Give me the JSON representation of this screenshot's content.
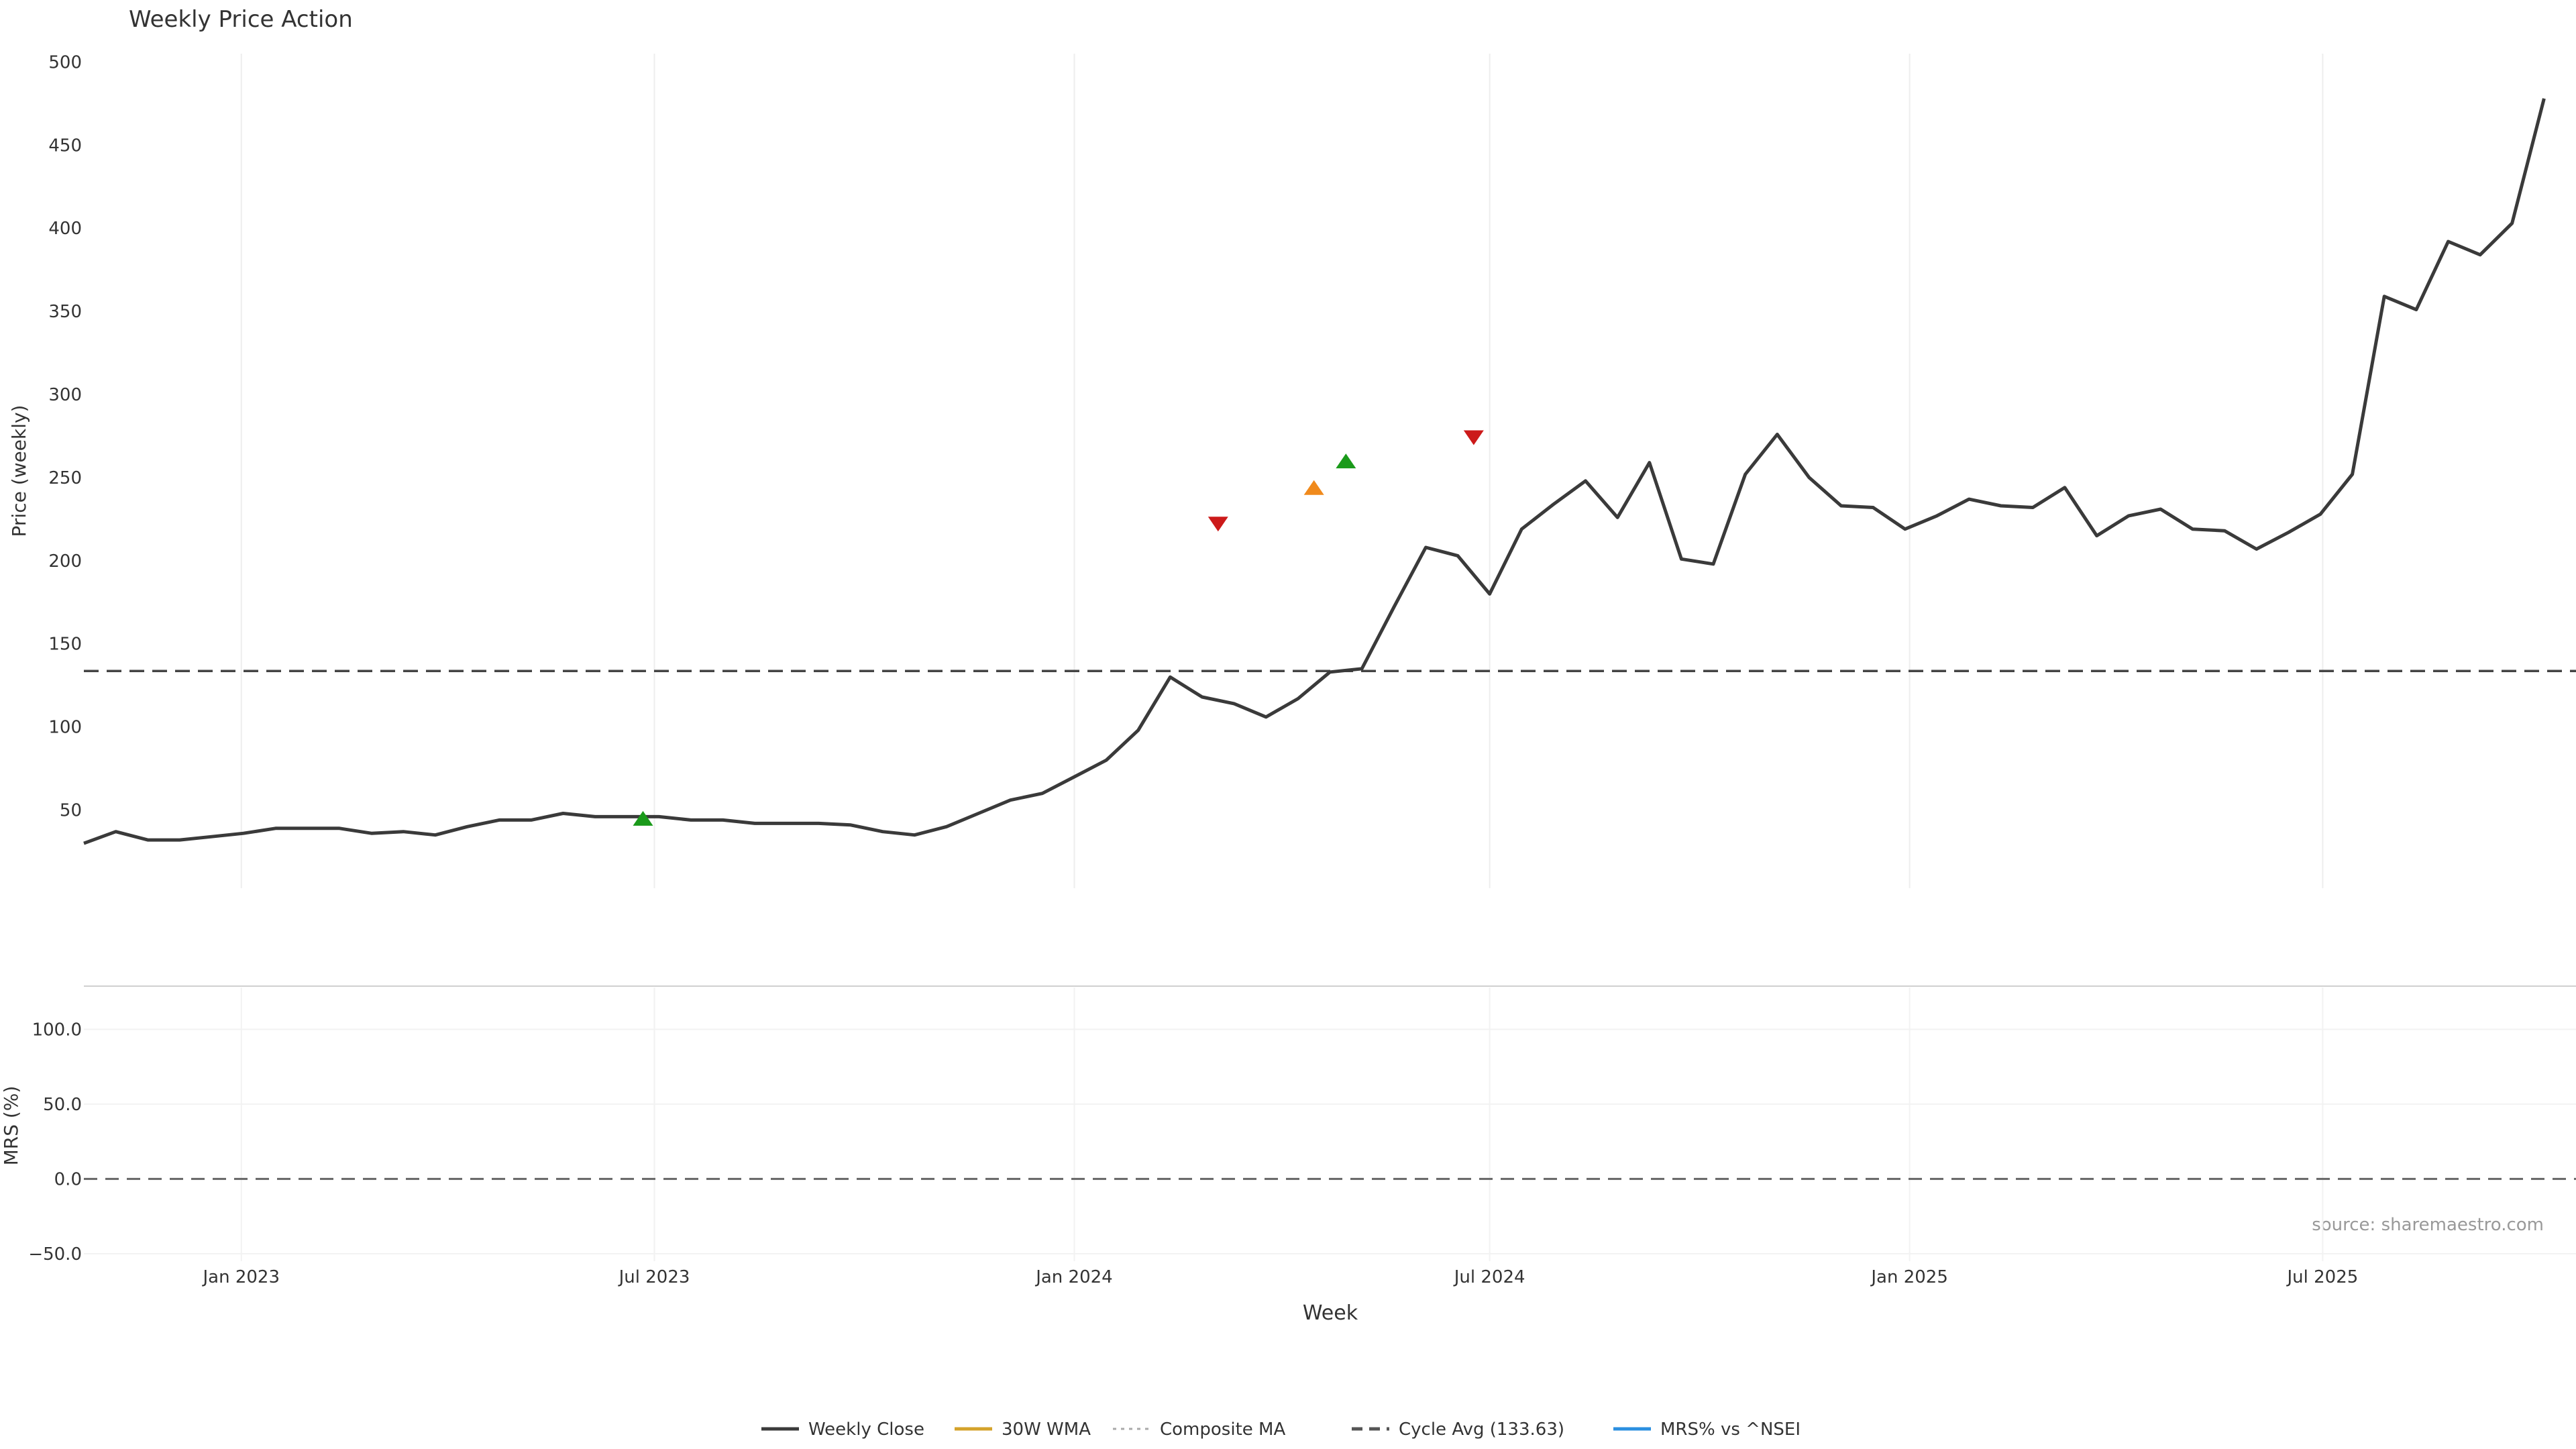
{
  "chart_data": [
    {
      "type": "line",
      "title": "Weekly Price Action",
      "ylabel": "Price (weekly)",
      "xlabel": "",
      "ylim": [
        3,
        505
      ],
      "yticks": [
        50,
        100,
        150,
        200,
        250,
        300,
        350,
        400,
        450,
        500
      ],
      "xlim": [
        "2022-10-24",
        "2025-10-20"
      ],
      "grid": true,
      "cycle_avg": 133.63,
      "series": [
        {
          "name": "Weekly Close",
          "color": "#3a3a3a",
          "style": "solid",
          "points": [
            [
              "2022-10-24",
              30
            ],
            [
              "2022-11-07",
              37
            ],
            [
              "2022-11-21",
              32
            ],
            [
              "2022-12-05",
              32
            ],
            [
              "2022-12-19",
              34
            ],
            [
              "2023-01-02",
              36
            ],
            [
              "2023-01-16",
              39
            ],
            [
              "2023-01-30",
              39
            ],
            [
              "2023-02-13",
              39
            ],
            [
              "2023-02-27",
              36
            ],
            [
              "2023-03-13",
              37
            ],
            [
              "2023-03-27",
              35
            ],
            [
              "2023-04-10",
              40
            ],
            [
              "2023-04-24",
              44
            ],
            [
              "2023-05-08",
              44
            ],
            [
              "2023-05-22",
              48
            ],
            [
              "2023-06-05",
              46
            ],
            [
              "2023-06-19",
              46
            ],
            [
              "2023-07-03",
              46
            ],
            [
              "2023-07-17",
              44
            ],
            [
              "2023-07-31",
              44
            ],
            [
              "2023-08-14",
              42
            ],
            [
              "2023-08-28",
              42
            ],
            [
              "2023-09-11",
              42
            ],
            [
              "2023-09-25",
              41
            ],
            [
              "2023-10-09",
              37
            ],
            [
              "2023-10-23",
              35
            ],
            [
              "2023-11-06",
              40
            ],
            [
              "2023-11-20",
              48
            ],
            [
              "2023-12-04",
              56
            ],
            [
              "2023-12-18",
              60
            ],
            [
              "2024-01-01",
              70
            ],
            [
              "2024-01-15",
              80
            ],
            [
              "2024-01-29",
              98
            ],
            [
              "2024-02-12",
              130
            ],
            [
              "2024-02-26",
              118
            ],
            [
              "2024-03-11",
              114
            ],
            [
              "2024-03-25",
              106
            ],
            [
              "2024-04-08",
              117
            ],
            [
              "2024-04-22",
              133
            ],
            [
              "2024-05-06",
              135
            ],
            [
              "2024-05-20",
              172
            ],
            [
              "2024-06-03",
              208
            ],
            [
              "2024-06-17",
              203
            ],
            [
              "2024-07-01",
              180
            ],
            [
              "2024-07-15",
              219
            ],
            [
              "2024-07-29",
              234
            ],
            [
              "2024-08-12",
              248
            ],
            [
              "2024-08-26",
              226
            ],
            [
              "2024-09-09",
              259
            ],
            [
              "2024-09-23",
              201
            ],
            [
              "2024-10-07",
              198
            ],
            [
              "2024-10-21",
              252
            ],
            [
              "2024-11-04",
              276
            ],
            [
              "2024-11-18",
              250
            ],
            [
              "2024-12-02",
              233
            ],
            [
              "2024-12-16",
              232
            ],
            [
              "2024-12-30",
              219
            ],
            [
              "2025-01-13",
              227
            ],
            [
              "2025-01-27",
              237
            ],
            [
              "2025-02-10",
              233
            ],
            [
              "2025-02-24",
              232
            ],
            [
              "2025-03-10",
              244
            ],
            [
              "2025-03-24",
              215
            ],
            [
              "2025-04-07",
              227
            ],
            [
              "2025-04-21",
              231
            ],
            [
              "2025-05-05",
              219
            ],
            [
              "2025-05-19",
              218
            ],
            [
              "2025-06-02",
              207
            ],
            [
              "2025-06-16",
              217
            ],
            [
              "2025-06-30",
              228
            ],
            [
              "2025-07-14",
              252
            ],
            [
              "2025-07-28",
              359
            ],
            [
              "2025-08-11",
              351
            ],
            [
              "2025-08-25",
              392
            ],
            [
              "2025-09-08",
              384
            ],
            [
              "2025-09-22",
              403
            ],
            [
              "2025-10-06",
              478
            ]
          ]
        },
        {
          "name": "30W WMA",
          "color": "#d4a22a",
          "style": "solid",
          "points": []
        },
        {
          "name": "Composite MA",
          "color": "#aaaaaa",
          "style": "dotted",
          "points": []
        },
        {
          "name": "Cycle Avg (133.63)",
          "color": "#555555",
          "style": "dashed",
          "points": []
        }
      ],
      "signals": [
        {
          "date": "2023-06-26",
          "value": 45,
          "direction": "up",
          "color": "#1a9a1a"
        },
        {
          "date": "2024-03-04",
          "value": 222,
          "direction": "down",
          "color": "#cc1a1a"
        },
        {
          "date": "2024-04-15",
          "value": 244,
          "direction": "up",
          "color": "#f08a1c"
        },
        {
          "date": "2024-04-29",
          "value": 260,
          "direction": "up",
          "color": "#1a9a1a"
        },
        {
          "date": "2024-06-24",
          "value": 274,
          "direction": "down",
          "color": "#cc1a1a"
        }
      ]
    },
    {
      "type": "line",
      "title": "",
      "ylabel": "MRS (%)",
      "xlabel": "Week",
      "ylim": [
        -55,
        128
      ],
      "yticks": [
        -50,
        0,
        50,
        100
      ],
      "ytick_labels": [
        "−50.0",
        "0.0",
        "50.0",
        "100.0"
      ],
      "xlim": [
        "2022-10-24",
        "2025-10-20"
      ],
      "xticks": [
        "2023-01-01",
        "2023-07-01",
        "2024-01-01",
        "2024-07-01",
        "2025-01-01",
        "2025-07-01"
      ],
      "xtick_labels": [
        "Jan 2023",
        "Jul 2023",
        "Jan 2024",
        "Jul 2024",
        "Jan 2025",
        "Jul 2025"
      ],
      "zero_line": true,
      "series": [
        {
          "name": "MRS% vs ^NSEI",
          "color": "#2b8fe0",
          "style": "solid",
          "points": []
        }
      ]
    }
  ],
  "legend": {
    "placement": "bottom",
    "items": [
      {
        "label": "Weekly Close",
        "color": "#3a3a3a",
        "style": "solid"
      },
      {
        "label": "30W WMA",
        "color": "#d4a22a",
        "style": "solid"
      },
      {
        "label": "Composite MA",
        "color": "#aaaaaa",
        "style": "dotted"
      },
      {
        "label": "Cycle Avg (133.63)",
        "color": "#555555",
        "style": "dashed"
      },
      {
        "label": "MRS% vs ^NSEI",
        "color": "#2b8fe0",
        "style": "solid"
      }
    ]
  },
  "watermark": "source: sharemaestro.com"
}
